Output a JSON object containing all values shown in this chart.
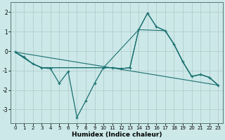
{
  "xlabel": "Humidex (Indice chaleur)",
  "background_color": "#cce8e8",
  "grid_color": "#b0c8c8",
  "line_color": "#1a7070",
  "xlim": [
    -0.5,
    23.5
  ],
  "ylim": [
    -3.7,
    2.5
  ],
  "yticks": [
    -3,
    -2,
    -1,
    0,
    1,
    2
  ],
  "xticks": [
    0,
    1,
    2,
    3,
    4,
    5,
    6,
    7,
    8,
    9,
    10,
    11,
    12,
    13,
    14,
    15,
    16,
    17,
    18,
    19,
    20,
    21,
    22,
    23
  ],
  "line1_x": [
    0,
    1,
    2,
    3,
    4,
    5,
    6,
    7,
    8,
    9,
    10,
    11,
    12,
    13,
    14,
    15,
    16,
    17,
    18,
    19,
    20,
    21,
    22,
    23
  ],
  "line1_y": [
    -0.05,
    -0.3,
    -0.65,
    -0.85,
    -0.9,
    -1.65,
    -1.05,
    -3.4,
    -2.55,
    -1.65,
    -0.85,
    -0.85,
    -0.9,
    -0.85,
    1.1,
    1.95,
    1.25,
    1.05,
    0.35,
    -0.55,
    -1.3,
    -1.2,
    -1.35,
    -1.75
  ],
  "line2_x": [
    0,
    2,
    3,
    5,
    7,
    9,
    10,
    11,
    12,
    13,
    14,
    15,
    16,
    17,
    18,
    19,
    20,
    21,
    22,
    23
  ],
  "line2_y": [
    -0.05,
    -0.65,
    -0.85,
    -0.85,
    -0.85,
    -0.85,
    -0.85,
    -0.85,
    -0.9,
    -0.85,
    1.1,
    1.95,
    1.25,
    1.05,
    0.35,
    -0.55,
    -1.3,
    -1.2,
    -1.35,
    -1.75
  ],
  "line3_x": [
    0,
    2,
    3,
    5,
    7,
    10,
    14,
    17,
    18,
    19,
    20,
    21,
    22,
    23
  ],
  "line3_y": [
    -0.05,
    -0.65,
    -0.85,
    -0.85,
    -0.85,
    -0.85,
    1.1,
    1.05,
    0.35,
    -0.55,
    -1.3,
    -1.2,
    -1.35,
    -1.75
  ],
  "line4_x": [
    0,
    23
  ],
  "line4_y": [
    -0.05,
    -1.75
  ]
}
